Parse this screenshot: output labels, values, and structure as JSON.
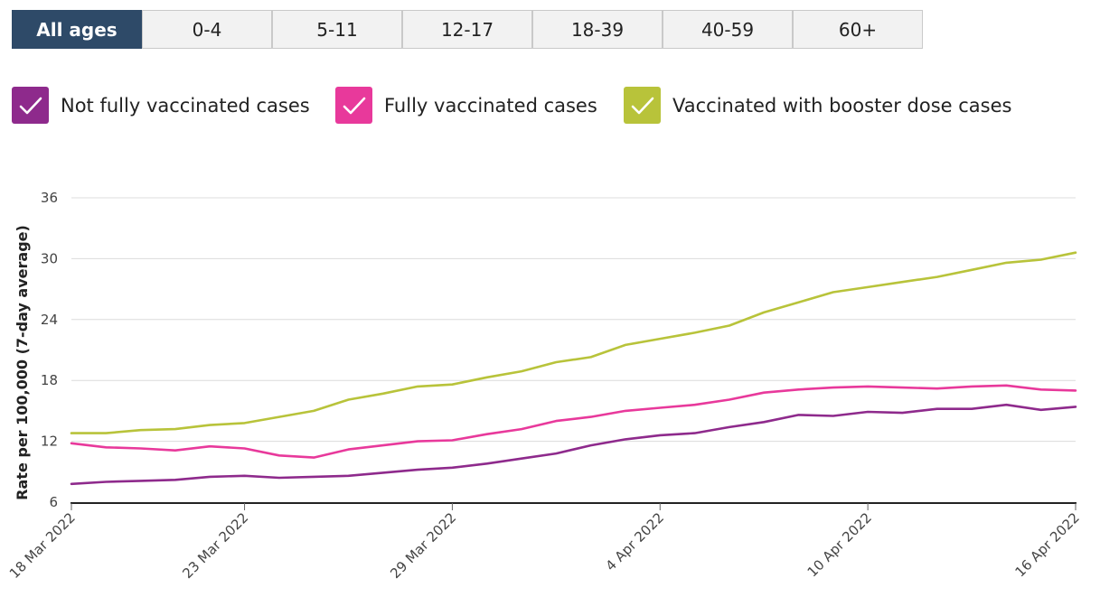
{
  "tabs": {
    "items": [
      {
        "label": "All ages",
        "active": true
      },
      {
        "label": "0-4",
        "active": false
      },
      {
        "label": "5-11",
        "active": false
      },
      {
        "label": "12-17",
        "active": false
      },
      {
        "label": "18-39",
        "active": false
      },
      {
        "label": "40-59",
        "active": false
      },
      {
        "label": "60+",
        "active": false
      }
    ]
  },
  "legend": {
    "items": [
      {
        "label": "Not fully vaccinated cases",
        "color": "#8e2a8c",
        "icon": "check-icon",
        "checked": true
      },
      {
        "label": "Fully vaccinated cases",
        "color": "#e8399b",
        "icon": "check-icon",
        "checked": true
      },
      {
        "label": "Vaccinated with booster dose cases",
        "color": "#b8c33a",
        "icon": "check-icon",
        "checked": true
      }
    ]
  },
  "chart_data": {
    "type": "line",
    "title": "",
    "xlabel": "",
    "ylabel": "Rate per 100,000 (7-day average)",
    "ylim": [
      6,
      36
    ],
    "y_ticks": [
      6,
      12,
      18,
      24,
      30,
      36
    ],
    "x_tick_labels": [
      "18 Mar 2022",
      "23 Mar 2022",
      "29 Mar 2022",
      "4 Apr 2022",
      "10 Apr 2022",
      "16 Apr 2022"
    ],
    "x_tick_positions": [
      0,
      5,
      11,
      17,
      23,
      29
    ],
    "x": [
      "18 Mar 2022",
      "19 Mar 2022",
      "20 Mar 2022",
      "21 Mar 2022",
      "22 Mar 2022",
      "23 Mar 2022",
      "24 Mar 2022",
      "25 Mar 2022",
      "26 Mar 2022",
      "27 Mar 2022",
      "28 Mar 2022",
      "29 Mar 2022",
      "30 Mar 2022",
      "31 Mar 2022",
      "1 Apr 2022",
      "2 Apr 2022",
      "3 Apr 2022",
      "4 Apr 2022",
      "5 Apr 2022",
      "6 Apr 2022",
      "7 Apr 2022",
      "8 Apr 2022",
      "9 Apr 2022",
      "10 Apr 2022",
      "11 Apr 2022",
      "12 Apr 2022",
      "13 Apr 2022",
      "14 Apr 2022",
      "15 Apr 2022",
      "16 Apr 2022"
    ],
    "grid": true,
    "series": [
      {
        "name": "Not fully vaccinated cases",
        "color": "#8e2a8c",
        "values": [
          7.8,
          8.0,
          8.1,
          8.2,
          8.5,
          8.6,
          8.4,
          8.5,
          8.6,
          8.9,
          9.2,
          9.4,
          9.8,
          10.3,
          10.8,
          11.6,
          12.2,
          12.6,
          12.8,
          13.4,
          13.9,
          14.6,
          14.5,
          14.9,
          14.8,
          15.2,
          15.2,
          15.6,
          15.1,
          15.4
        ]
      },
      {
        "name": "Fully vaccinated cases",
        "color": "#e8399b",
        "values": [
          11.8,
          11.4,
          11.3,
          11.1,
          11.5,
          11.3,
          10.6,
          10.4,
          11.2,
          11.6,
          12.0,
          12.1,
          12.7,
          13.2,
          14.0,
          14.4,
          15.0,
          15.3,
          15.6,
          16.1,
          16.8,
          17.1,
          17.3,
          17.4,
          17.3,
          17.2,
          17.4,
          17.5,
          17.1,
          17.0
        ]
      },
      {
        "name": "Vaccinated with booster dose cases",
        "color": "#b8c33a",
        "values": [
          12.8,
          12.8,
          13.1,
          13.2,
          13.6,
          13.8,
          14.4,
          15.0,
          16.1,
          16.7,
          17.4,
          17.6,
          18.3,
          18.9,
          19.8,
          20.3,
          21.5,
          22.1,
          22.7,
          23.4,
          24.7,
          25.7,
          26.7,
          27.2,
          27.7,
          28.2,
          28.9,
          29.6,
          29.9,
          30.6
        ]
      }
    ]
  }
}
